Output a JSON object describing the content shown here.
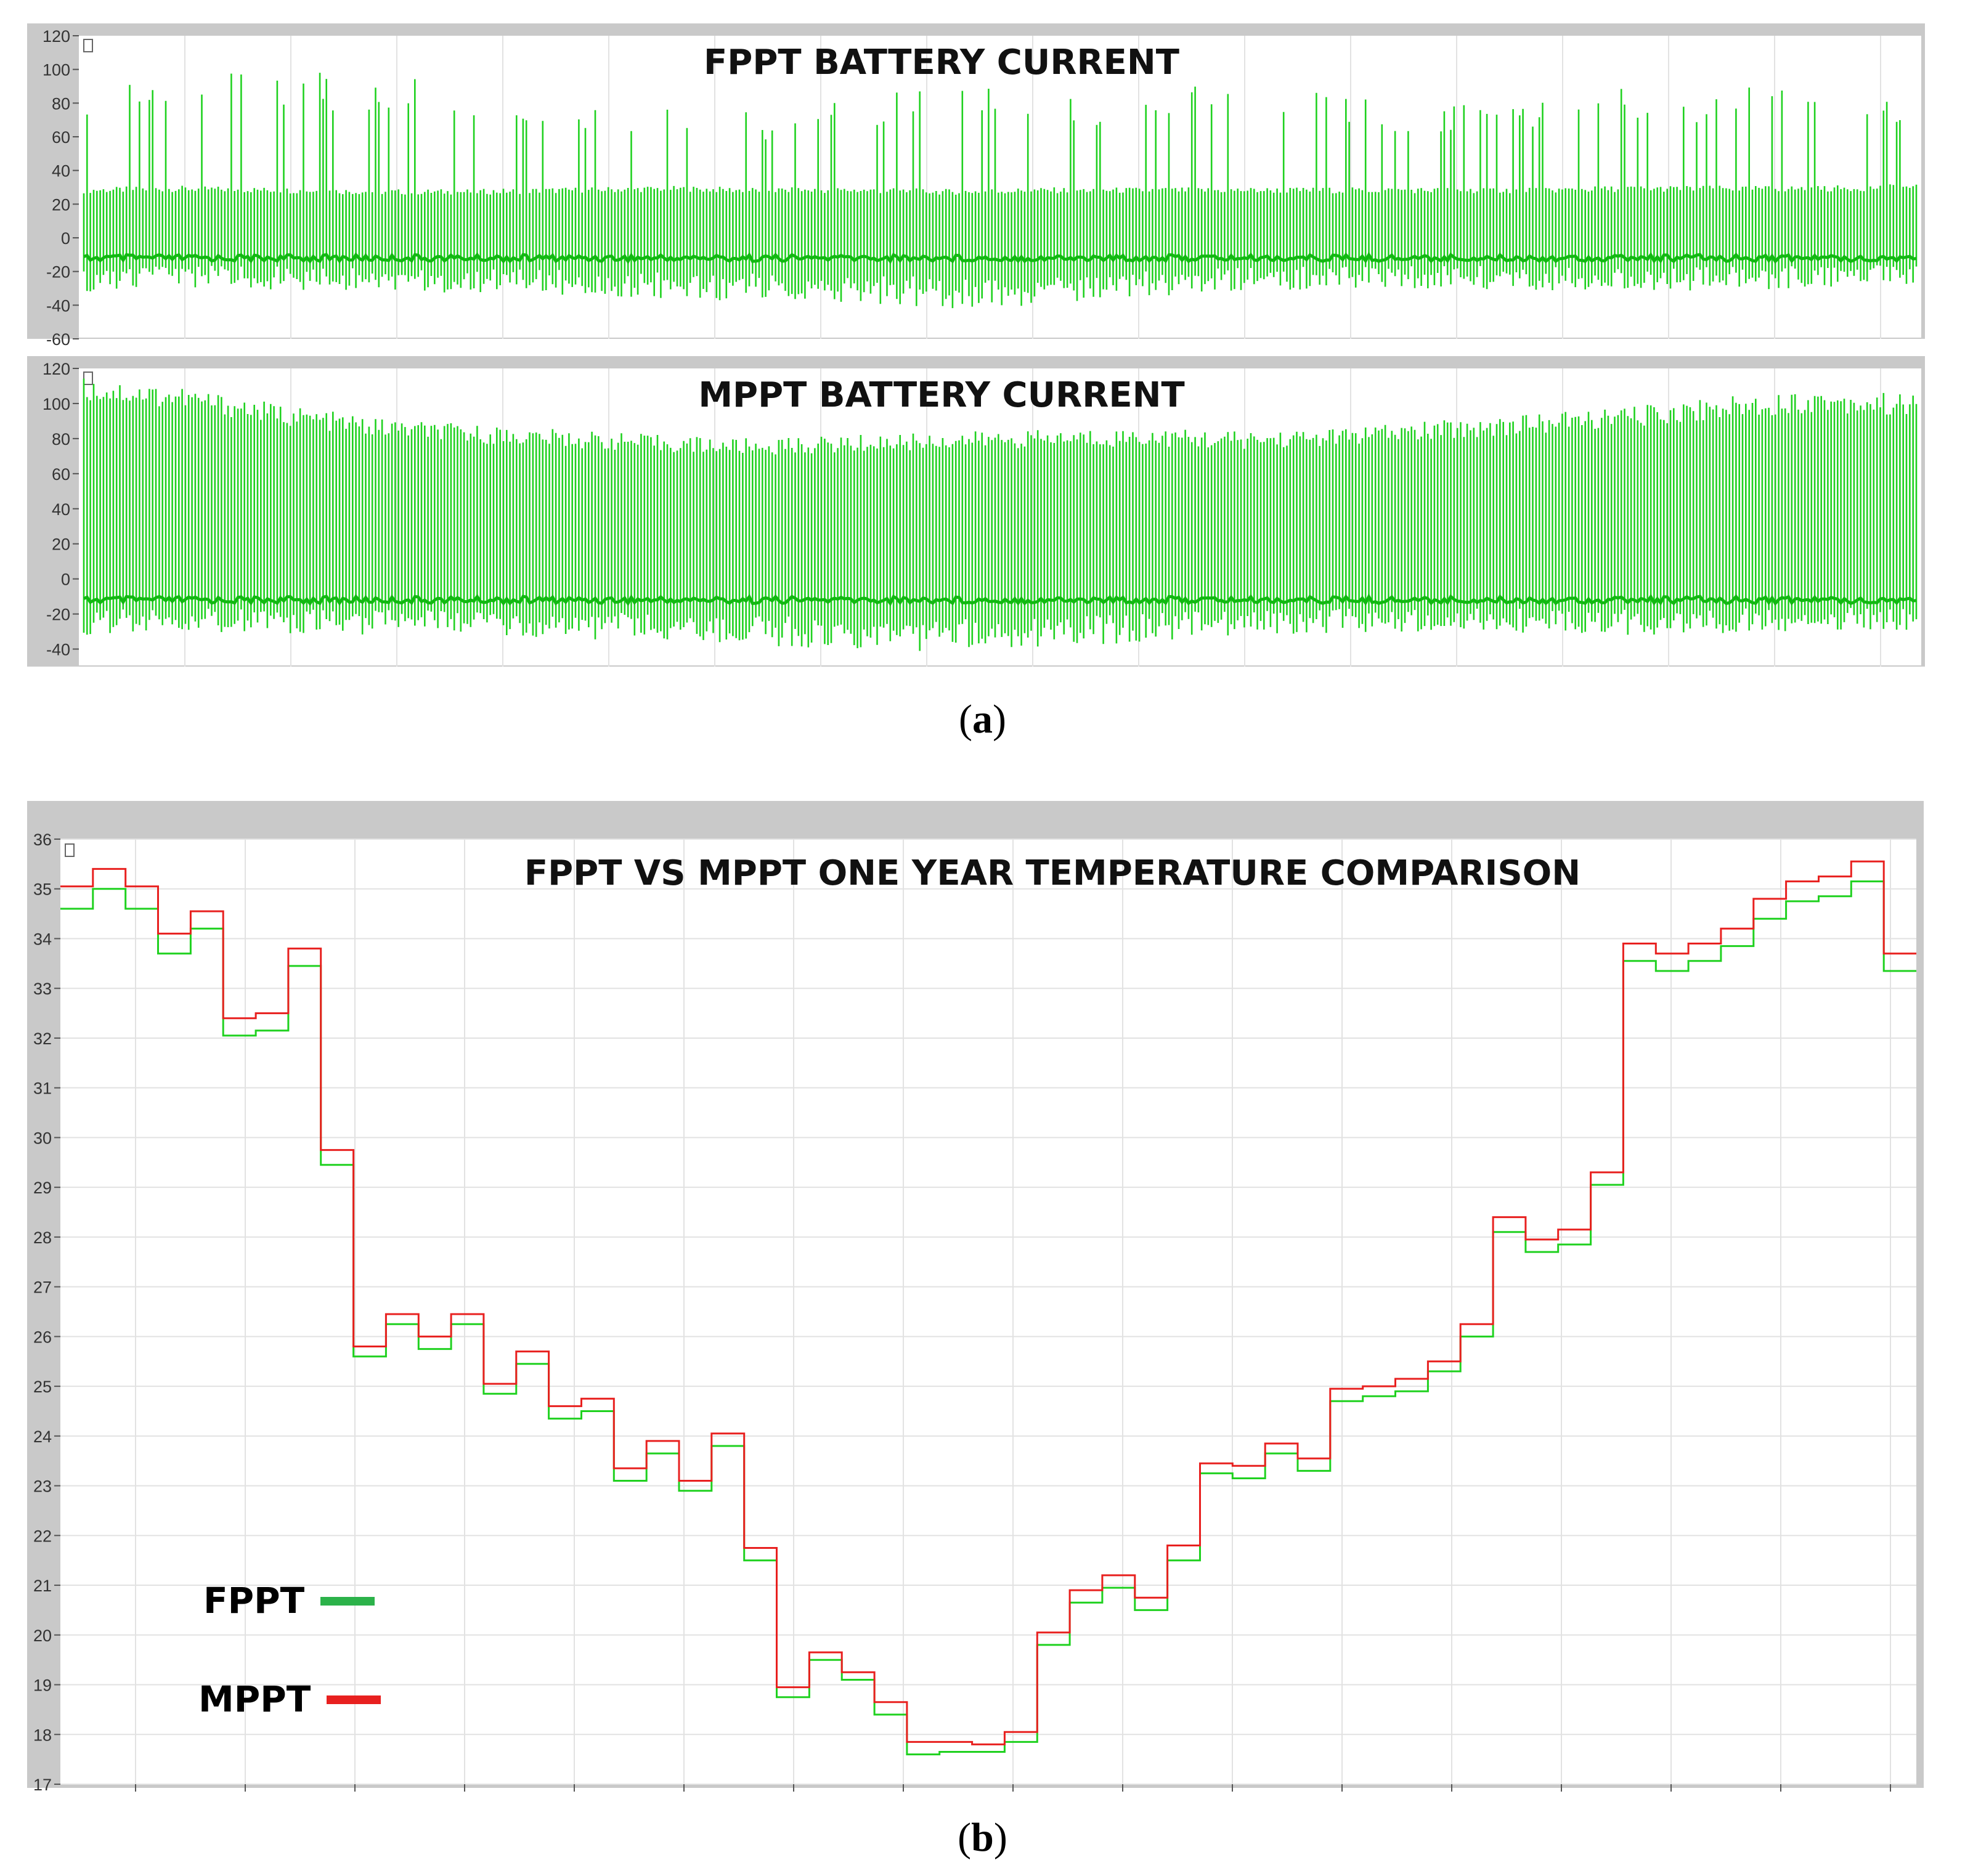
{
  "colors": {
    "fppt": "#1fd11f",
    "fppt_legend": "#2cb24a",
    "mppt": "#e8201f",
    "frame": "#c9c9c9",
    "grid": "#e2e2e2"
  },
  "captions": {
    "a": "a",
    "b": "b"
  },
  "chart_data": [
    {
      "type": "line",
      "title": "FPPT BATTERY CURRENT",
      "series": [
        {
          "name": "",
          "color": "#1fd11f",
          "envelope_high": [
            30,
            31,
            30,
            29,
            29,
            30,
            31,
            30,
            30,
            29,
            30,
            30,
            30,
            30,
            30,
            30,
            31,
            31,
            31,
            32
          ],
          "envelope_low": [
            -32,
            -30,
            -31,
            -32,
            -33,
            -34,
            -36,
            -38,
            -40,
            -42,
            -40,
            -36,
            -32,
            -31,
            -30,
            -31,
            -32,
            -31,
            -30,
            -29
          ],
          "peaks": [
            92,
            95,
            102,
            95,
            92,
            84,
            80,
            76,
            88,
            92,
            86,
            92,
            88,
            82,
            78,
            96,
            90,
            88,
            86
          ]
        }
      ],
      "yticks": [
        -60,
        -40,
        -20,
        0,
        20,
        40,
        60,
        80,
        100,
        120
      ],
      "ylim": [
        -60,
        120
      ]
    },
    {
      "type": "line",
      "title": "MPPT BATTERY CURRENT",
      "series": [
        {
          "name": "",
          "color": "#1fd11f",
          "envelope_high": [
            115,
            110,
            100,
            92,
            88,
            85,
            82,
            80,
            82,
            84,
            85,
            86,
            84,
            86,
            90,
            94,
            98,
            104,
            108,
            105
          ],
          "envelope_low": [
            -33,
            -30,
            -31,
            -32,
            -33,
            -34,
            -36,
            -38,
            -40,
            -42,
            -40,
            -36,
            -32,
            -31,
            -30,
            -31,
            -32,
            -31,
            -30,
            -29
          ]
        }
      ],
      "yticks": [
        -40,
        -20,
        0,
        20,
        40,
        60,
        80,
        100,
        120
      ],
      "ylim": [
        -50,
        120
      ]
    },
    {
      "type": "line",
      "title": "FPPT VS MPPT ONE YEAR TEMPERATURE COMPARISON",
      "legend": "bottom-left",
      "grid": true,
      "ylim": [
        17,
        36
      ],
      "yticks": [
        17,
        18,
        19,
        20,
        21,
        22,
        23,
        24,
        25,
        26,
        27,
        28,
        29,
        30,
        31,
        32,
        33,
        34,
        35,
        36
      ],
      "steps": 57,
      "series": [
        {
          "name": "FPPT",
          "color": "#1fd11f",
          "values": [
            34.6,
            35.0,
            34.6,
            33.7,
            34.2,
            32.05,
            32.15,
            33.45,
            29.45,
            25.6,
            26.25,
            25.75,
            26.25,
            24.85,
            25.45,
            24.35,
            24.5,
            23.1,
            23.65,
            22.9,
            23.8,
            21.5,
            18.75,
            19.5,
            19.1,
            18.4,
            17.6,
            17.65,
            17.65,
            17.85,
            19.8,
            20.65,
            20.95,
            20.5,
            21.5,
            23.25,
            23.15,
            23.65,
            23.3,
            24.7,
            24.8,
            24.9,
            25.3,
            26.0,
            28.1,
            27.7,
            27.85,
            29.05,
            33.55,
            33.35,
            33.55,
            33.85,
            34.4,
            34.75,
            34.85,
            35.15,
            33.35
          ]
        },
        {
          "name": "MPPT",
          "color": "#e8201f",
          "values": [
            35.05,
            35.4,
            35.05,
            34.1,
            34.55,
            32.4,
            32.5,
            33.8,
            29.75,
            25.8,
            26.45,
            26.0,
            26.45,
            25.05,
            25.7,
            24.6,
            24.75,
            23.35,
            23.9,
            23.1,
            24.05,
            21.75,
            18.95,
            19.65,
            19.25,
            18.65,
            17.85,
            17.85,
            17.8,
            18.05,
            20.05,
            20.9,
            21.2,
            20.75,
            21.8,
            23.45,
            23.4,
            23.85,
            23.55,
            24.95,
            25.0,
            25.15,
            25.5,
            26.25,
            28.4,
            27.95,
            28.15,
            29.3,
            33.9,
            33.7,
            33.9,
            34.2,
            34.8,
            35.15,
            35.25,
            35.55,
            33.7
          ]
        }
      ]
    }
  ]
}
